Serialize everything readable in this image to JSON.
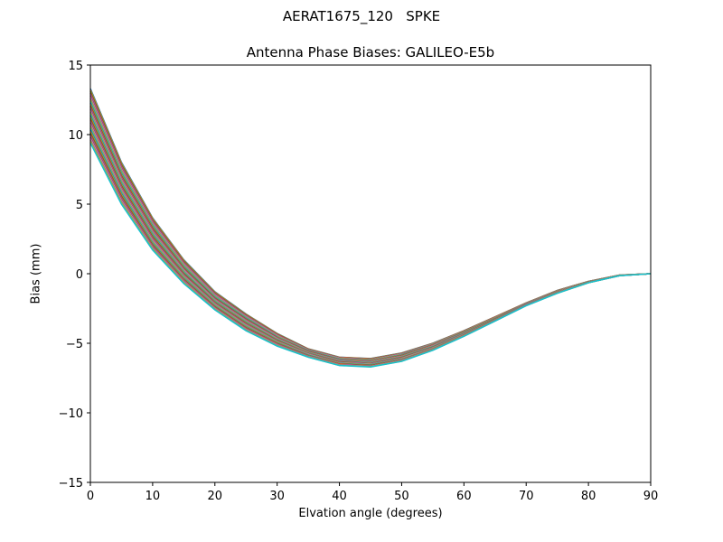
{
  "figure": {
    "suptitle": "AERAT1675_120   SPKE",
    "title": "Antenna Phase Biases: GALILEO-E5b",
    "xlabel": "Elvation angle (degrees)",
    "ylabel": "Bias (mm)"
  },
  "chart_data": {
    "type": "line",
    "title": "Antenna Phase Biases: GALILEO-E5b",
    "suptitle": "AERAT1675_120   SPKE",
    "xlabel": "Elvation angle (degrees)",
    "ylabel": "Bias (mm)",
    "xlim": [
      0,
      90
    ],
    "ylim": [
      -15,
      15
    ],
    "xticks": [
      0,
      10,
      20,
      30,
      40,
      50,
      60,
      70,
      80,
      90
    ],
    "yticks": [
      -15,
      -10,
      -5,
      0,
      5,
      10,
      15
    ],
    "ytick_labels": [
      "−15",
      "−10",
      "−5",
      "0",
      "5",
      "10",
      "15"
    ],
    "grid": false,
    "legend": null,
    "x": [
      0,
      5,
      10,
      15,
      20,
      25,
      30,
      35,
      40,
      45,
      50,
      55,
      60,
      65,
      70,
      75,
      80,
      85,
      90
    ],
    "series_note": "Bundle of many overlapping per-azimuth curves (matplotlib default color cycle); envelope given by upper and lower bounds",
    "series": [
      {
        "name": "upper_envelope",
        "values": [
          13.3,
          8.0,
          4.0,
          1.0,
          -1.3,
          -2.9,
          -4.3,
          -5.4,
          -6.0,
          -6.1,
          -5.7,
          -5.0,
          -4.1,
          -3.1,
          -2.1,
          -1.2,
          -0.55,
          -0.1,
          0.0
        ]
      },
      {
        "name": "mid_1",
        "values": [
          12.3,
          7.2,
          3.4,
          0.5,
          -1.7,
          -3.2,
          -4.55,
          -5.55,
          -6.15,
          -6.25,
          -5.85,
          -5.1,
          -4.2,
          -3.2,
          -2.15,
          -1.25,
          -0.58,
          -0.12,
          0.0
        ]
      },
      {
        "name": "mid_2",
        "values": [
          11.4,
          6.5,
          2.8,
          0.1,
          -2.0,
          -3.5,
          -4.75,
          -5.7,
          -6.3,
          -6.4,
          -6.0,
          -5.25,
          -4.3,
          -3.25,
          -2.2,
          -1.3,
          -0.6,
          -0.12,
          0.0
        ]
      },
      {
        "name": "mid_3",
        "values": [
          10.4,
          5.8,
          2.2,
          -0.3,
          -2.3,
          -3.8,
          -4.95,
          -5.85,
          -6.45,
          -6.55,
          -6.15,
          -5.4,
          -4.4,
          -3.35,
          -2.25,
          -1.35,
          -0.62,
          -0.13,
          0.0
        ]
      },
      {
        "name": "lower_envelope",
        "values": [
          9.4,
          5.0,
          1.7,
          -0.7,
          -2.6,
          -4.1,
          -5.2,
          -6.0,
          -6.6,
          -6.7,
          -6.3,
          -5.5,
          -4.5,
          -3.4,
          -2.3,
          -1.4,
          -0.65,
          -0.14,
          0.0
        ]
      }
    ],
    "colors": [
      "#1f77b4",
      "#ff7f0e",
      "#2ca02c",
      "#d62728",
      "#9467bd",
      "#8c564b",
      "#e377c2",
      "#7f7f7f",
      "#bcbd22",
      "#17becf"
    ]
  }
}
